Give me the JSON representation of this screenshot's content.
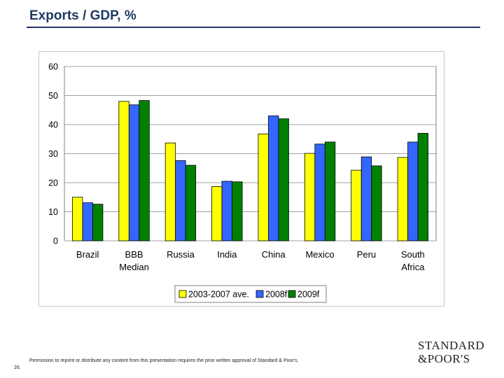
{
  "slide": {
    "title": "Exports / GDP, %",
    "footer": "Permission to reprint or distribute any content from this presentation requires the prior written approval of Standard & Poor's.",
    "page_number": "26.",
    "logo_line1": "STANDARD",
    "logo_line2": "&POOR'S"
  },
  "colors": {
    "title": "#1f3864",
    "series": [
      "#ffff00",
      "#3366ff",
      "#008000"
    ],
    "grid": "#a0a0a0"
  },
  "chart_data": {
    "type": "bar",
    "title": "",
    "xlabel": "",
    "ylabel": "",
    "ylim": [
      0,
      60
    ],
    "yticks": [
      0,
      10,
      20,
      30,
      40,
      50,
      60
    ],
    "grid": true,
    "legend_position": "bottom",
    "categories": [
      [
        "Brazil"
      ],
      [
        "BBB",
        "Median"
      ],
      [
        "Russia"
      ],
      [
        "India"
      ],
      [
        "China"
      ],
      [
        "Mexico"
      ],
      [
        "Peru"
      ],
      [
        "South",
        "Africa"
      ]
    ],
    "series": [
      {
        "name": "2003-2007 ave.",
        "values": [
          15.0,
          48.0,
          33.7,
          18.7,
          36.8,
          30.1,
          24.3,
          28.7
        ]
      },
      {
        "name": "2008f",
        "values": [
          13.1,
          46.8,
          27.6,
          20.5,
          43.0,
          33.3,
          28.9,
          34.0
        ]
      },
      {
        "name": "2009f",
        "values": [
          12.6,
          48.3,
          26.0,
          20.3,
          42.0,
          34.0,
          25.8,
          37.0
        ]
      }
    ]
  }
}
